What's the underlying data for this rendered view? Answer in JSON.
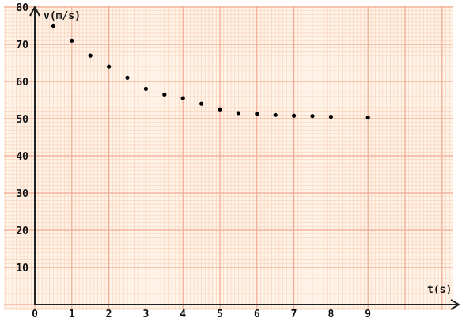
{
  "chart_data": {
    "type": "scatter",
    "title": "",
    "xlabel": "t(s)",
    "ylabel": "v(m/s)",
    "xlim": [
      0,
      11
    ],
    "ylim": [
      0,
      80
    ],
    "x_ticks": [
      "0",
      "1",
      "2",
      "3",
      "4",
      "5",
      "6",
      "7",
      "8",
      "9"
    ],
    "y_ticks": [
      "10",
      "20",
      "30",
      "40",
      "50",
      "60",
      "70",
      "80"
    ],
    "grid": true,
    "series": [
      {
        "x": [
          0.5,
          1,
          1.5,
          2,
          2.5,
          3,
          3.5,
          4,
          4.5,
          5,
          5.5,
          6,
          6.5,
          7,
          7.5,
          8,
          9
        ],
        "y": [
          75,
          71,
          67,
          64,
          61,
          58,
          56.5,
          55.5,
          54,
          52.5,
          51.5,
          51.3,
          51,
          50.8,
          50.7,
          50.5,
          50.3
        ]
      }
    ],
    "colors": {
      "background": "#ffffff",
      "plot_fill": "#fff3e8",
      "grid_minor": "#f8d4bc",
      "grid_major": "#f0a890",
      "axis": "#222222",
      "point": "#000000"
    }
  }
}
